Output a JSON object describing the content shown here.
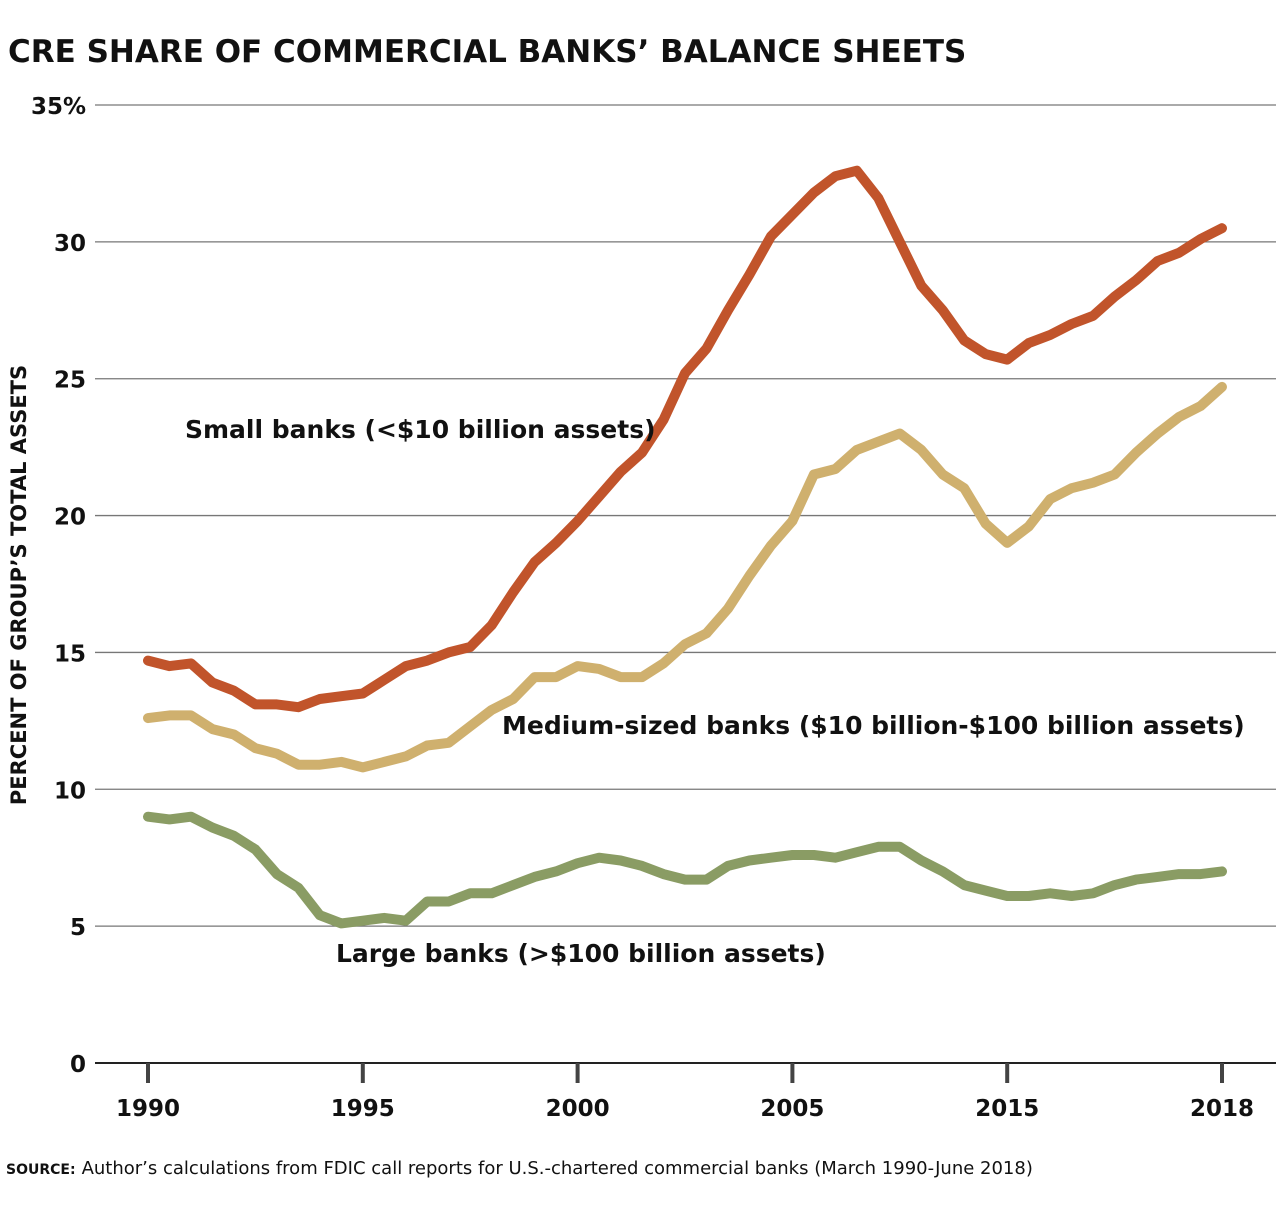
{
  "chart_data": {
    "type": "line",
    "title": "CRE SHARE OF COMMERCIAL BANKS’ BALANCE SHEETS",
    "ylabel": "PERCENT OF GROUP’S TOTAL ASSETS",
    "xlabel": "",
    "ylim": [
      0,
      35
    ],
    "yticks": [
      "0",
      "5",
      "10",
      "15",
      "20",
      "25",
      "30",
      "35%"
    ],
    "xticks": [
      "1990",
      "1995",
      "2000",
      "2005",
      "2015",
      "2018"
    ],
    "grid": true,
    "series": [
      {
        "name": "Small banks (<$10 billion assets)",
        "color": "#c1542b",
        "values": [
          14.7,
          14.5,
          14.6,
          13.9,
          13.6,
          13.1,
          13.1,
          13.0,
          13.3,
          13.4,
          13.5,
          14.0,
          14.5,
          14.7,
          15.0,
          15.2,
          16.0,
          17.2,
          18.3,
          19.0,
          19.8,
          20.7,
          21.6,
          22.3,
          23.5,
          25.2,
          26.1,
          27.5,
          28.8,
          30.2,
          31.0,
          31.8,
          32.4,
          32.6,
          31.6,
          30.0,
          28.4,
          27.5,
          26.4,
          25.9,
          25.7,
          26.3,
          26.6,
          27.0,
          27.3,
          28.0,
          28.6,
          29.3,
          29.6,
          30.1,
          30.5
        ]
      },
      {
        "name": "Medium-sized banks ($10 billion-$100 billion assets)",
        "color": "#cfb06e",
        "values": [
          12.6,
          12.7,
          12.7,
          12.2,
          12.0,
          11.5,
          11.3,
          10.9,
          10.9,
          11.0,
          10.8,
          11.0,
          11.2,
          11.6,
          11.7,
          12.3,
          12.9,
          13.3,
          14.1,
          14.1,
          14.5,
          14.4,
          14.1,
          14.1,
          14.6,
          15.3,
          15.7,
          16.6,
          17.8,
          18.9,
          19.8,
          21.5,
          21.7,
          22.4,
          22.7,
          23.0,
          22.4,
          21.5,
          21.0,
          19.7,
          19.0,
          19.6,
          20.6,
          21.0,
          21.2,
          21.5,
          22.3,
          23.0,
          23.6,
          24.0,
          24.7
        ]
      },
      {
        "name": "Large banks (>$100 billion assets)",
        "color": "#8a9c64",
        "values": [
          9.0,
          8.9,
          9.0,
          8.6,
          8.3,
          7.8,
          6.9,
          6.4,
          5.4,
          5.1,
          5.2,
          5.3,
          5.2,
          5.9,
          5.9,
          6.2,
          6.2,
          6.5,
          6.8,
          7.0,
          7.3,
          7.5,
          7.4,
          7.2,
          6.9,
          6.7,
          6.7,
          7.2,
          7.4,
          7.5,
          7.6,
          7.6,
          7.5,
          7.7,
          7.9,
          7.9,
          7.4,
          7.0,
          6.5,
          6.3,
          6.1,
          6.1,
          6.2,
          6.1,
          6.2,
          6.5,
          6.7,
          6.8,
          6.9,
          6.9,
          7.0
        ]
      }
    ],
    "source_label": "SOURCE:",
    "source_text": "Author’s calculations from FDIC call reports for U.S.-chartered commercial banks (March 1990-June 2018)"
  }
}
